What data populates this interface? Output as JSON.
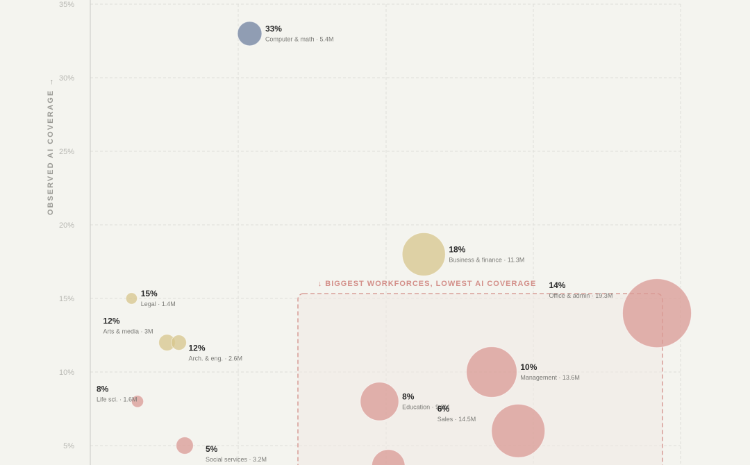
{
  "colors": {
    "tech": "#6f809f",
    "business": "#d7c68c",
    "labor": "#d99a94",
    "annotation": "#d38f89"
  },
  "chart_data": {
    "type": "scatter",
    "variant": "bubble",
    "ylabel": "OBSERVED AI COVERAGE →",
    "y_ticks": [
      "35%",
      "30%",
      "25%",
      "20%",
      "15%",
      "10%",
      "5%"
    ],
    "ylim": [
      0,
      35
    ],
    "x_axis": "unlabeled",
    "xlim": [
      0,
      100
    ],
    "grid": true,
    "annotation": {
      "text": "↓ BIGGEST WORKFORCES, LOWEST AI COVERAGE"
    },
    "points": [
      {
        "pct": "33%",
        "sub": "Computer & math · 5.4M",
        "label_pos": "right",
        "x": 27,
        "y": 33,
        "workers_m": 5.4,
        "group": "tech"
      },
      {
        "pct": "18%",
        "sub": "Business & finance · 11.3M",
        "label_pos": "right",
        "x": 56.5,
        "y": 18,
        "workers_m": 11.3,
        "group": "business"
      },
      {
        "pct": "15%",
        "sub": "Legal · 1.4M",
        "label_pos": "right",
        "x": 7,
        "y": 15,
        "workers_m": 1.4,
        "group": "business"
      },
      {
        "pct": "14%",
        "sub": "Office & admin · 19.3M",
        "label_pos": "above-left",
        "x": 96,
        "y": 14,
        "workers_m": 19.3,
        "group": "labor"
      },
      {
        "pct": "12%",
        "sub": "Arts & media · 3M",
        "label_pos": "above-left",
        "x": 13,
        "y": 12,
        "workers_m": 3,
        "group": "business"
      },
      {
        "pct": "12%",
        "sub": "Arch. & eng. · 2.6M",
        "label_pos": "below-right",
        "x": 15,
        "y": 12,
        "workers_m": 2.6,
        "group": "business"
      },
      {
        "pct": "10%",
        "sub": "Management · 13.6M",
        "label_pos": "right",
        "x": 68,
        "y": 10,
        "workers_m": 13.6,
        "group": "labor"
      },
      {
        "pct": "8%",
        "sub": "Life sci. · 1.6M",
        "label_pos": "above-left",
        "x": 8,
        "y": 8,
        "workers_m": 1.6,
        "group": "labor"
      },
      {
        "pct": "8%",
        "sub": "Education · 9.8M",
        "label_pos": "right",
        "x": 49,
        "y": 8,
        "workers_m": 9.8,
        "group": "labor"
      },
      {
        "pct": "6%",
        "sub": "Sales · 14.5M",
        "label_pos": "above-left",
        "x": 72.5,
        "y": 6,
        "workers_m": 14.5,
        "group": "labor"
      },
      {
        "pct": "5%",
        "sub": "Social services · 3.2M",
        "label_pos": "below-right",
        "x": 16,
        "y": 5,
        "workers_m": 3.2,
        "group": "labor"
      },
      {
        "pct": "",
        "sub": "",
        "label_pos": "none",
        "x": 50.5,
        "y": 3.6,
        "workers_m": 8.2,
        "group": "labor"
      }
    ]
  }
}
